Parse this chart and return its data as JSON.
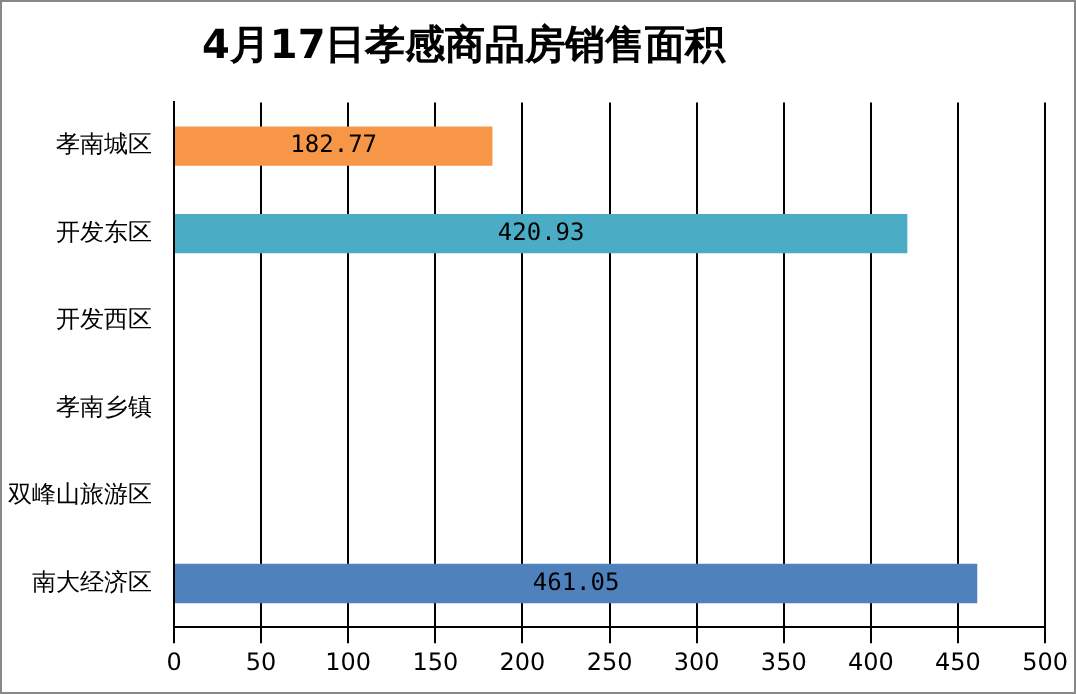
{
  "chart_data": {
    "type": "bar",
    "orientation": "horizontal",
    "title": "4月17日孝感商品房销售面积",
    "categories": [
      "孝南城区",
      "开发东区",
      "开发西区",
      "孝南乡镇",
      "双峰山旅游区",
      "南大经济区"
    ],
    "values": [
      182.77,
      420.93,
      null,
      null,
      null,
      461.05
    ],
    "colors": [
      "#f79646",
      "#4bacc6",
      "#4bacc6",
      "#4bacc6",
      "#4bacc6",
      "#4f81bd"
    ],
    "xlim": [
      0,
      500
    ],
    "xticks": [
      0,
      50,
      100,
      150,
      200,
      250,
      300,
      350,
      400,
      450,
      500
    ],
    "grid": "x",
    "data_labels": true,
    "legend": false
  }
}
